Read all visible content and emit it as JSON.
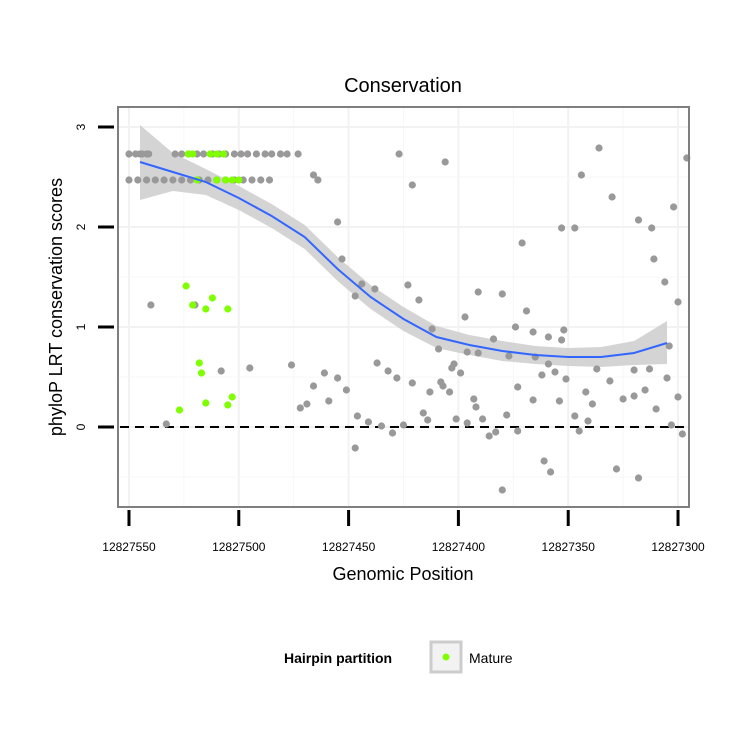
{
  "chart_data": {
    "type": "scatter",
    "title": "Conservation",
    "xlabel": "Genomic Position",
    "ylabel": "phyloP LRT conservation scores",
    "x_reversed": true,
    "xlim": [
      12827555,
      12827295
    ],
    "ylim": [
      -0.8,
      3.2
    ],
    "x_ticks": [
      12827550,
      12827500,
      12827450,
      12827400,
      12827350,
      12827300
    ],
    "x_tick_labels": [
      "12827550",
      "12827500",
      "12827450",
      "12827400",
      "12827350",
      "12827300"
    ],
    "y_ticks": [
      0,
      1,
      2,
      3
    ],
    "y_tick_labels": [
      "0",
      "1",
      "2",
      "3"
    ],
    "grid": true,
    "reference_line": {
      "y": 0,
      "style": "dashed"
    },
    "legend": {
      "title": "Hairpin partition",
      "position": "bottom",
      "entries": [
        {
          "label": "Mature",
          "color": "#7fff00"
        }
      ]
    },
    "colors": {
      "Other": "#999999",
      "Mature": "#7fff00",
      "smooth": "#3366ff",
      "ribbon": "#cccccc"
    },
    "smooth": {
      "x": [
        12827545,
        12827530,
        12827515,
        12827500,
        12827485,
        12827470,
        12827455,
        12827440,
        12827425,
        12827410,
        12827395,
        12827380,
        12827365,
        12827350,
        12827335,
        12827320,
        12827305
      ],
      "y": [
        2.65,
        2.55,
        2.45,
        2.29,
        2.11,
        1.9,
        1.58,
        1.3,
        1.08,
        0.9,
        0.82,
        0.76,
        0.72,
        0.7,
        0.7,
        0.74,
        0.84
      ],
      "upper": [
        3.02,
        2.74,
        2.58,
        2.41,
        2.23,
        2.02,
        1.7,
        1.42,
        1.2,
        1.01,
        0.92,
        0.86,
        0.81,
        0.79,
        0.8,
        0.86,
        1.06
      ],
      "lower": [
        2.27,
        2.36,
        2.32,
        2.17,
        1.99,
        1.78,
        1.46,
        1.18,
        0.96,
        0.79,
        0.72,
        0.66,
        0.63,
        0.61,
        0.6,
        0.62,
        0.63
      ]
    },
    "series": [
      {
        "name": "Mature",
        "points": [
          [
            12827523,
            2.73
          ],
          [
            12827521,
            2.73
          ],
          [
            12827513,
            2.73
          ],
          [
            12827510,
            2.73
          ],
          [
            12827507,
            2.73
          ],
          [
            12827519,
            2.47
          ],
          [
            12827510,
            2.47
          ],
          [
            12827506,
            2.47
          ],
          [
            12827503,
            2.47
          ],
          [
            12827500,
            2.47
          ],
          [
            12827524,
            1.41
          ],
          [
            12827521,
            1.22
          ],
          [
            12827515,
            1.18
          ],
          [
            12827512,
            1.29
          ],
          [
            12827505,
            1.18
          ],
          [
            12827518,
            0.64
          ],
          [
            12827517,
            0.54
          ],
          [
            12827527,
            0.17
          ],
          [
            12827515,
            0.24
          ],
          [
            12827505,
            0.22
          ],
          [
            12827503,
            0.3
          ]
        ]
      },
      {
        "name": "Other",
        "points": [
          [
            12827550,
            2.73
          ],
          [
            12827547,
            2.73
          ],
          [
            12827544,
            2.73
          ],
          [
            12827541,
            2.73
          ],
          [
            12827529,
            2.73
          ],
          [
            12827526,
            2.73
          ],
          [
            12827523,
            2.73
          ],
          [
            12827519,
            2.73
          ],
          [
            12827516,
            2.73
          ],
          [
            12827512,
            2.73
          ],
          [
            12827509,
            2.73
          ],
          [
            12827506,
            2.73
          ],
          [
            12827502,
            2.73
          ],
          [
            12827499,
            2.73
          ],
          [
            12827496,
            2.73
          ],
          [
            12827492,
            2.73
          ],
          [
            12827488,
            2.73
          ],
          [
            12827485,
            2.73
          ],
          [
            12827481,
            2.73
          ],
          [
            12827478,
            2.73
          ],
          [
            12827545,
            2.73
          ],
          [
            12827542,
            2.73
          ],
          [
            12827550,
            2.47
          ],
          [
            12827546,
            2.47
          ],
          [
            12827542,
            2.47
          ],
          [
            12827538,
            2.47
          ],
          [
            12827534,
            2.47
          ],
          [
            12827530,
            2.47
          ],
          [
            12827526,
            2.47
          ],
          [
            12827522,
            2.47
          ],
          [
            12827518,
            2.47
          ],
          [
            12827514,
            2.47
          ],
          [
            12827510,
            2.47
          ],
          [
            12827506,
            2.47
          ],
          [
            12827502,
            2.47
          ],
          [
            12827498,
            2.47
          ],
          [
            12827494,
            2.47
          ],
          [
            12827490,
            2.47
          ],
          [
            12827486,
            2.47
          ],
          [
            12827473,
            2.73
          ],
          [
            12827464,
            2.47
          ],
          [
            12827427,
            2.73
          ],
          [
            12827520,
            1.22
          ],
          [
            12827540,
            1.22
          ],
          [
            12827495,
            0.59
          ],
          [
            12827508,
            0.56
          ],
          [
            12827476,
            0.62
          ],
          [
            12827533,
            0.03
          ],
          [
            12827453,
            1.68
          ],
          [
            12827447,
            1.31
          ],
          [
            12827444,
            1.43
          ],
          [
            12827437,
            0.64
          ],
          [
            12827432,
            0.56
          ],
          [
            12827428,
            0.49
          ],
          [
            12827421,
            0.44
          ],
          [
            12827414,
            0.07
          ],
          [
            12827407,
            0.41
          ],
          [
            12827404,
            0.35
          ],
          [
            12827401,
            0.08
          ],
          [
            12827393,
            0.28
          ],
          [
            12827389,
            0.08
          ],
          [
            12827383,
            -0.05
          ],
          [
            12827378,
            0.12
          ],
          [
            12827373,
            0.4
          ],
          [
            12827365,
            0.7
          ],
          [
            12827359,
            0.63
          ],
          [
            12827354,
            0.26
          ],
          [
            12827347,
            0.11
          ],
          [
            12827341,
            0.06
          ],
          [
            12827337,
            0.58
          ],
          [
            12827331,
            0.46
          ],
          [
            12827325,
            0.28
          ],
          [
            12827320,
            0.31
          ],
          [
            12827315,
            0.37
          ],
          [
            12827310,
            0.18
          ],
          [
            12827303,
            0.02
          ],
          [
            12827298,
            -0.07
          ],
          [
            12827447,
            -0.21
          ],
          [
            12827380,
            -0.63
          ],
          [
            12827361,
            -0.34
          ],
          [
            12827358,
            -0.45
          ],
          [
            12827328,
            -0.42
          ],
          [
            12827318,
            -0.51
          ],
          [
            12827412,
            0.98
          ],
          [
            12827418,
            1.27
          ],
          [
            12827423,
            1.42
          ],
          [
            12827391,
            1.35
          ],
          [
            12827380,
            1.33
          ],
          [
            12827397,
            1.1
          ],
          [
            12827438,
            1.38
          ],
          [
            12827455,
            2.05
          ],
          [
            12827466,
            2.52
          ],
          [
            12827421,
            2.42
          ],
          [
            12827406,
            2.65
          ],
          [
            12827344,
            2.52
          ],
          [
            12827336,
            2.79
          ],
          [
            12827330,
            2.3
          ],
          [
            12827371,
            1.84
          ],
          [
            12827353,
            1.99
          ],
          [
            12827347,
            1.99
          ],
          [
            12827318,
            2.07
          ],
          [
            12827312,
            1.99
          ],
          [
            12827311,
            1.68
          ],
          [
            12827306,
            1.45
          ],
          [
            12827302,
            2.2
          ],
          [
            12827296,
            2.69
          ],
          [
            12827300,
            1.25
          ],
          [
            12827304,
            0.81
          ],
          [
            12827300,
            0.3
          ],
          [
            12827305,
            0.49
          ],
          [
            12827313,
            0.58
          ],
          [
            12827320,
            0.57
          ],
          [
            12827356,
            0.55
          ],
          [
            12827353,
            0.87
          ],
          [
            12827352,
            0.97
          ],
          [
            12827359,
            0.9
          ],
          [
            12827366,
            0.95
          ],
          [
            12827369,
            1.16
          ],
          [
            12827374,
            1.0
          ],
          [
            12827384,
            0.88
          ],
          [
            12827391,
            0.74
          ],
          [
            12827396,
            0.75
          ],
          [
            12827403,
            0.59
          ],
          [
            12827408,
            0.45
          ],
          [
            12827413,
            0.35
          ],
          [
            12827416,
            0.14
          ],
          [
            12827425,
            0.02
          ],
          [
            12827430,
            -0.06
          ],
          [
            12827435,
            0.01
          ],
          [
            12827441,
            0.05
          ],
          [
            12827446,
            0.11
          ],
          [
            12827451,
            0.37
          ],
          [
            12827455,
            0.49
          ],
          [
            12827461,
            0.54
          ],
          [
            12827466,
            0.41
          ],
          [
            12827469,
            0.23
          ],
          [
            12827472,
            0.19
          ],
          [
            12827339,
            0.23
          ],
          [
            12827342,
            0.35
          ],
          [
            12827345,
            -0.04
          ],
          [
            12827351,
            0.48
          ],
          [
            12827362,
            0.52
          ],
          [
            12827366,
            0.27
          ],
          [
            12827373,
            -0.04
          ],
          [
            12827377,
            0.71
          ],
          [
            12827386,
            -0.09
          ],
          [
            12827392,
            0.2
          ],
          [
            12827396,
            0.04
          ],
          [
            12827399,
            0.54
          ],
          [
            12827402,
            0.63
          ],
          [
            12827409,
            0.78
          ],
          [
            12827459,
            0.26
          ]
        ]
      }
    ]
  }
}
